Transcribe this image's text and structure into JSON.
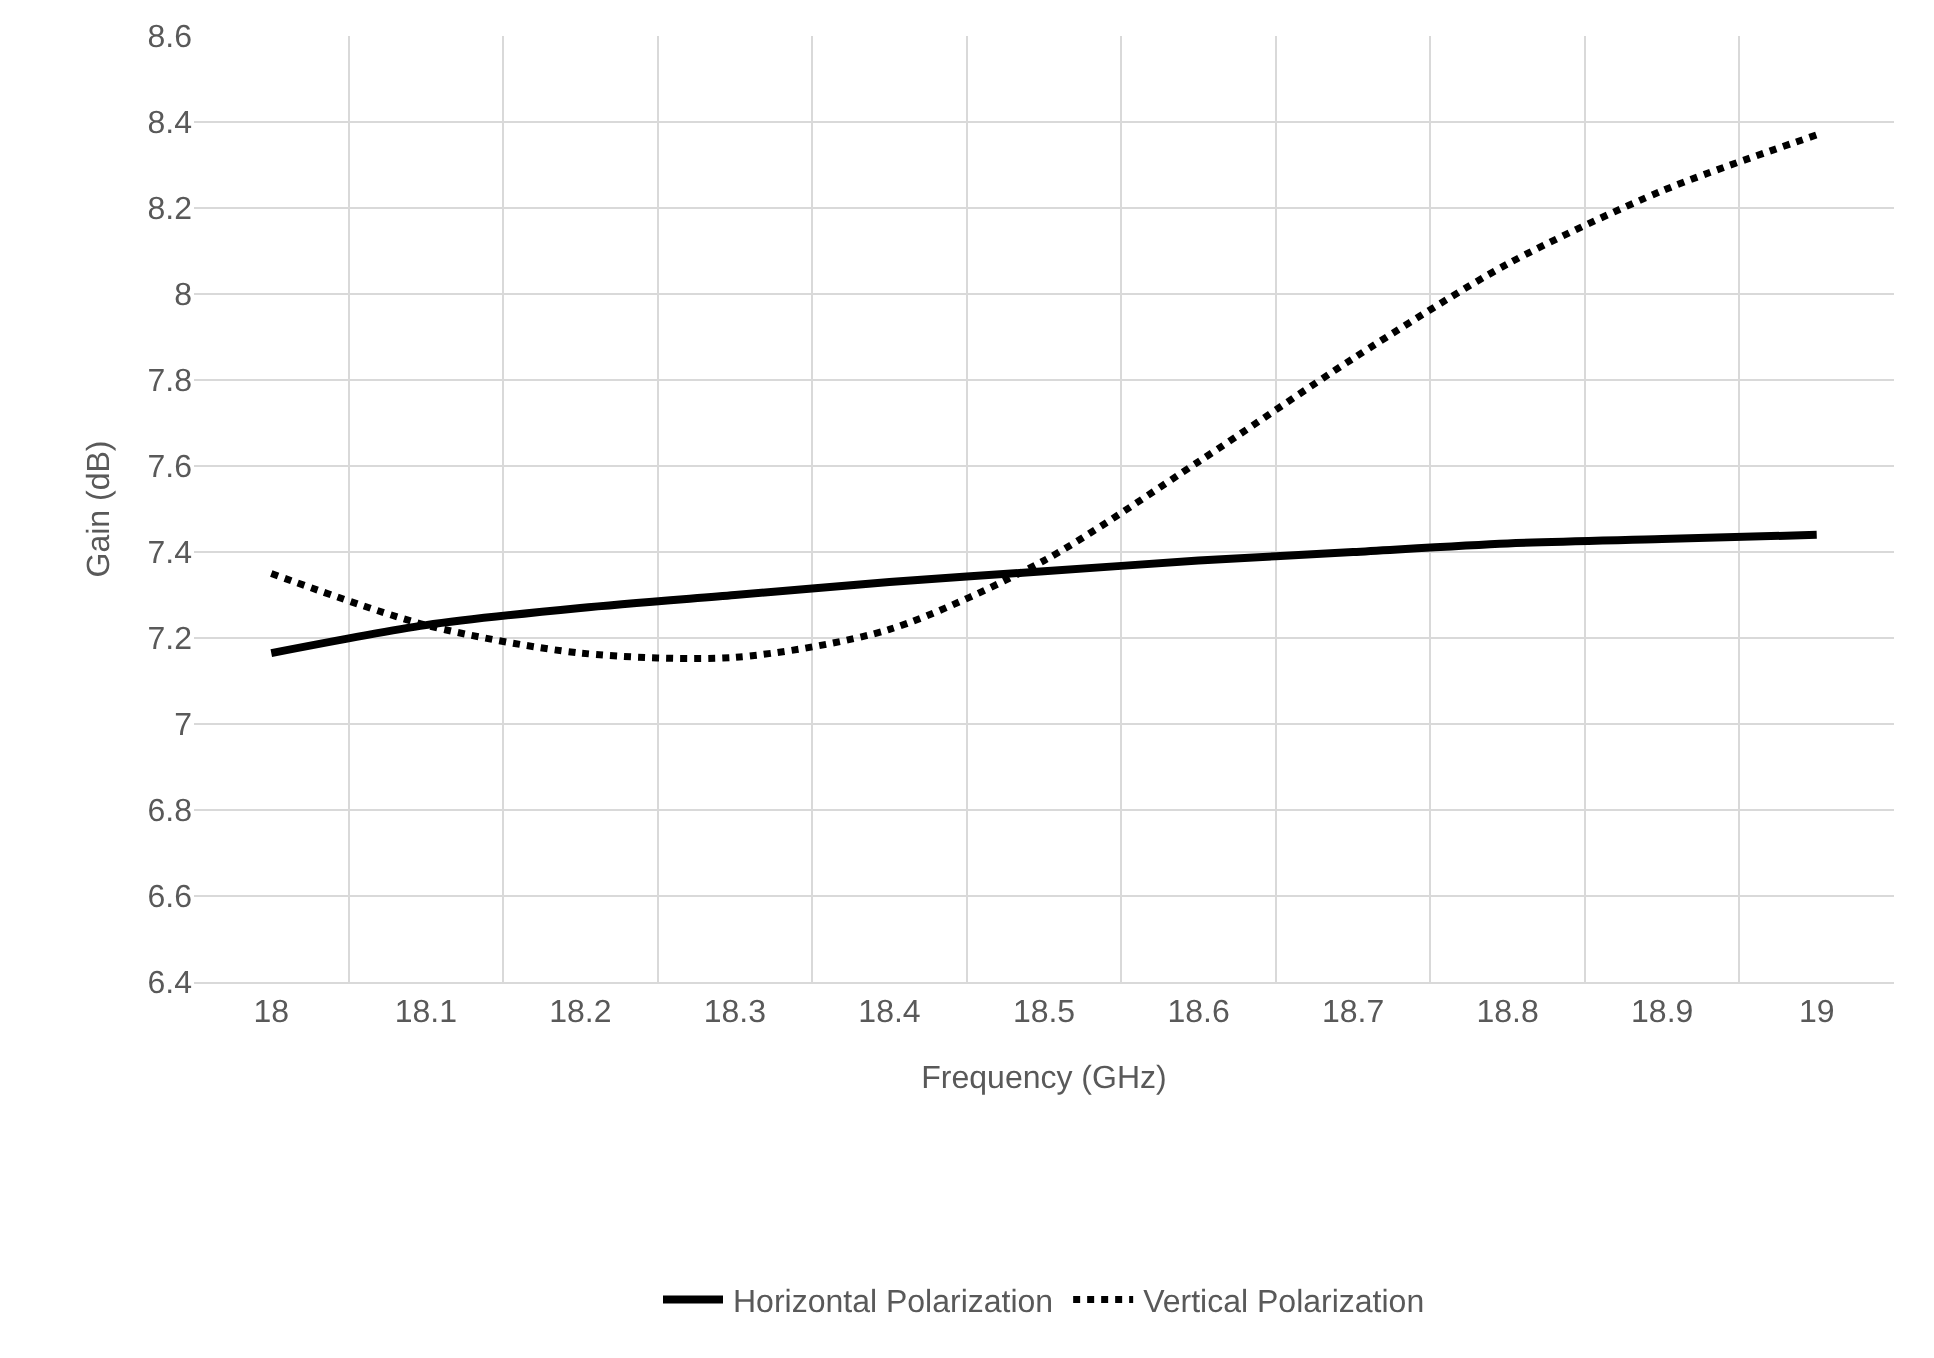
{
  "chart_data": {
    "type": "line",
    "xlabel": "Frequency (GHz)",
    "ylabel": "Gain (dB)",
    "categories": [
      "18",
      "18.1",
      "18.2",
      "18.3",
      "18.4",
      "18.5",
      "18.6",
      "18.7",
      "18.8",
      "18.9",
      "19"
    ],
    "series": [
      {
        "name": "Horizontal Polarization",
        "color": "#000000",
        "line_style": "solid",
        "values": [
          7.165,
          7.23,
          7.27,
          7.3,
          7.33,
          7.355,
          7.38,
          7.4,
          7.42,
          7.43,
          7.44
        ]
      },
      {
        "name": "Vertical Polarization",
        "color": "#000000",
        "line_style": "dotted",
        "values": [
          7.35,
          7.23,
          7.165,
          7.155,
          7.22,
          7.38,
          7.61,
          7.85,
          8.07,
          8.24,
          8.37
        ]
      }
    ],
    "ylim": [
      6.4,
      8.6
    ],
    "yticks": [
      6.4,
      6.6,
      6.8,
      7,
      7.2,
      7.4,
      7.6,
      7.8,
      8,
      8.2,
      8.4,
      8.6
    ],
    "grid": true,
    "legend": "bottom",
    "marker": "none"
  }
}
